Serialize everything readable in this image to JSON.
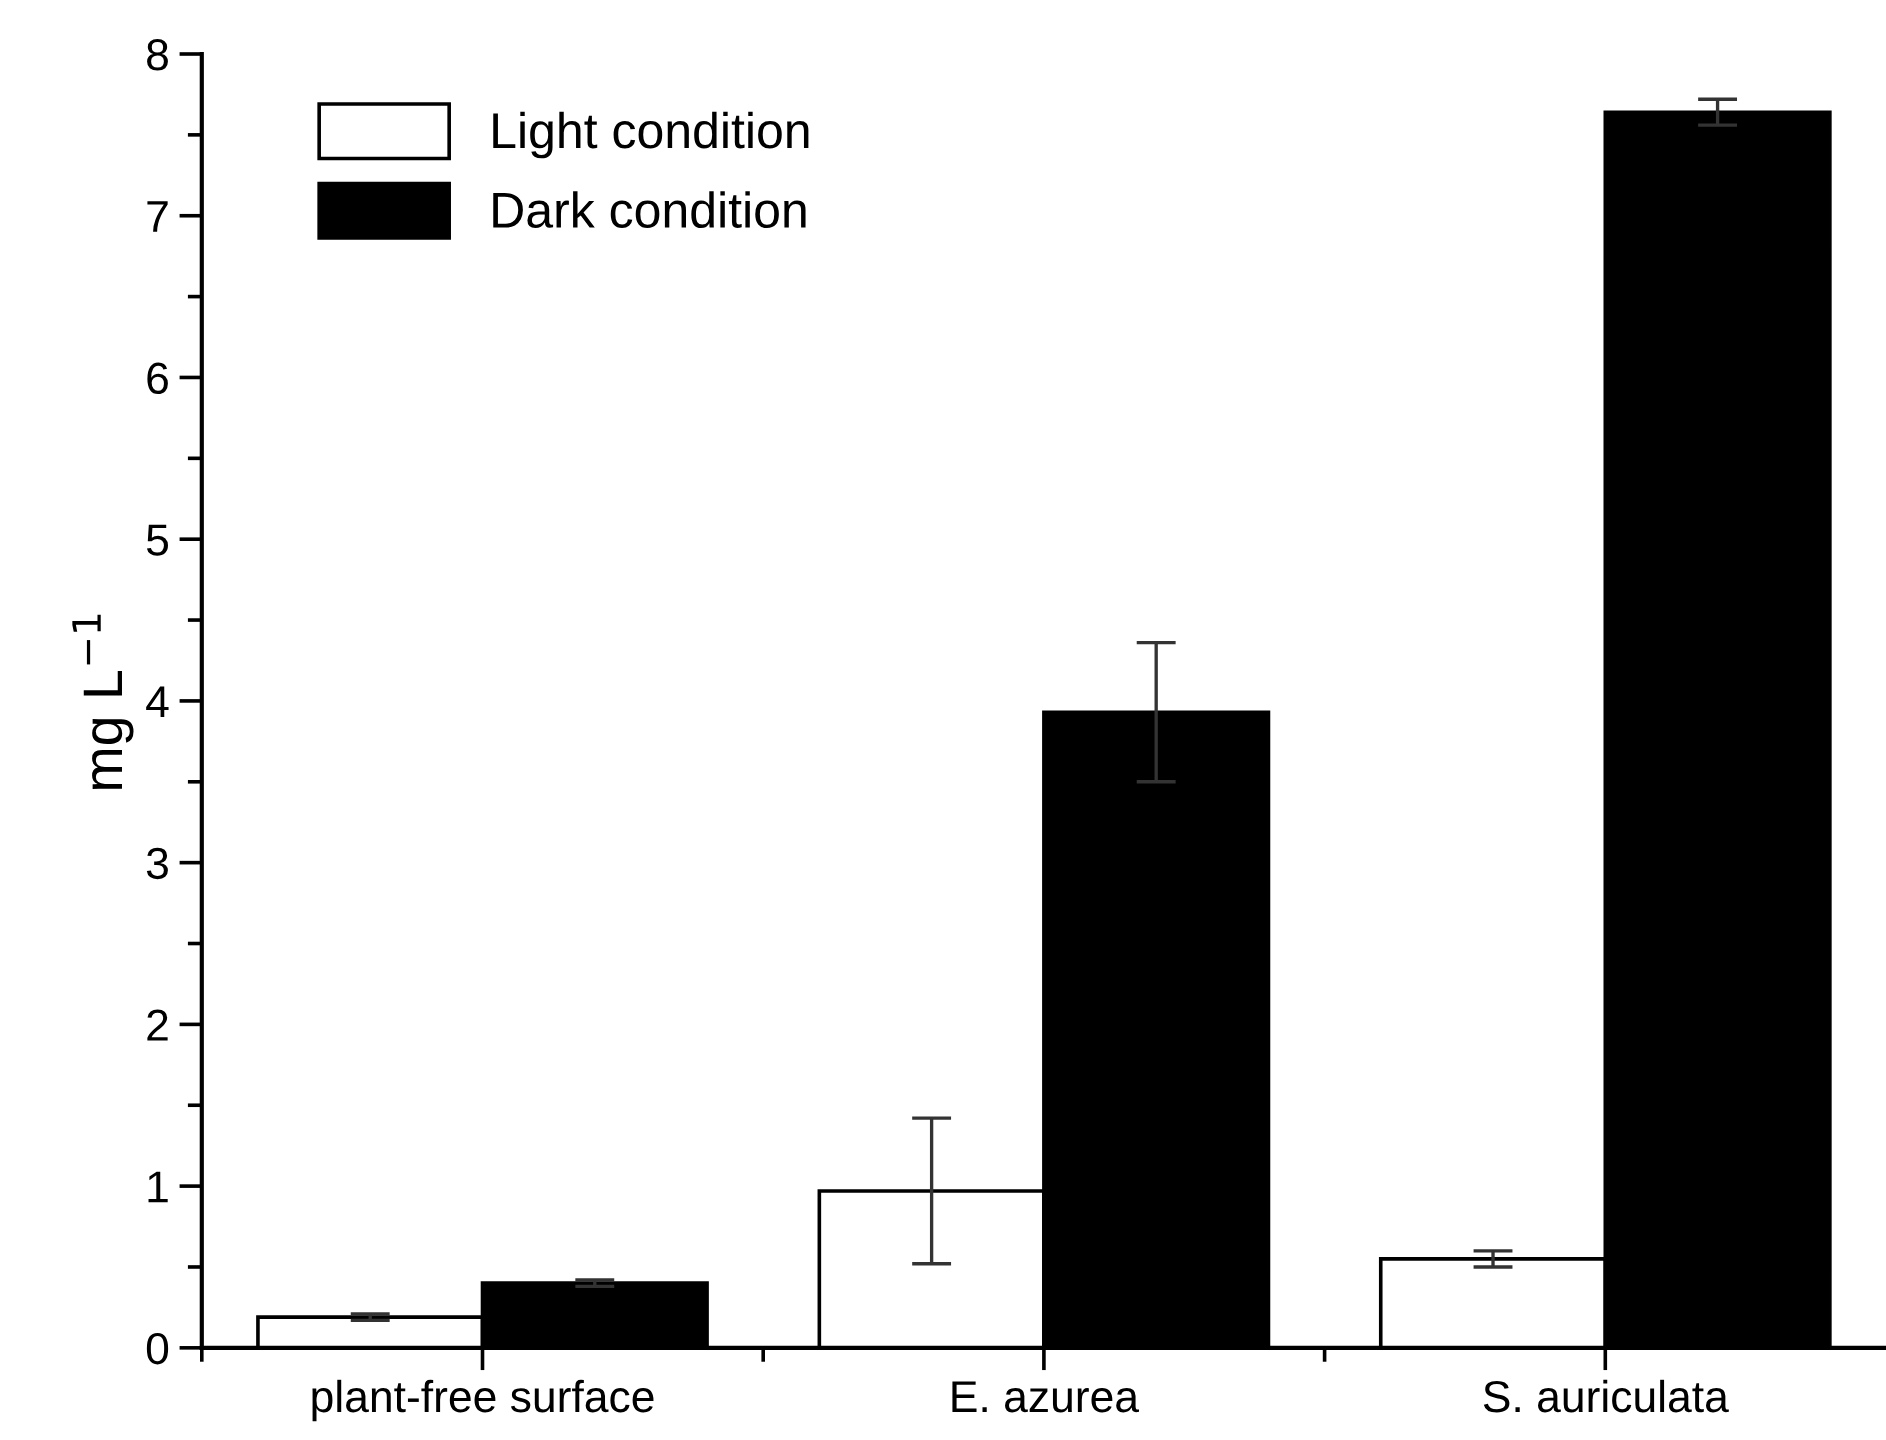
{
  "chart_data": {
    "type": "bar",
    "ylabel": "mg L$^{−1}$",
    "categories": [
      "plant-free surface",
      "E. azurea",
      "S. auriculata"
    ],
    "series": [
      {
        "name": "Light condition",
        "color": "#ffffff",
        "values": [
          0.19,
          0.97,
          0.55
        ],
        "errors": [
          0.02,
          0.45,
          0.05
        ]
      },
      {
        "name": "Dark condition",
        "color": "#000000",
        "values": [
          0.4,
          3.93,
          7.64
        ],
        "errors": [
          0.02,
          0.43,
          0.08
        ]
      }
    ],
    "ylim": [
      0,
      8
    ],
    "yticks": [
      0,
      {
        "value": 0.5,
        "label": null
      },
      1,
      {
        "value": 1.5,
        "label": null
      },
      2,
      {
        "value": 2.5,
        "label": null
      },
      3,
      {
        "value": 3.5,
        "label": null
      },
      4,
      {
        "value": 4.5,
        "label": null
      },
      5,
      {
        "value": 5.5,
        "label": null
      },
      6,
      {
        "value": 6.5,
        "label": null
      },
      7,
      {
        "value": 7.5,
        "label": null
      },
      8
    ],
    "grid": false,
    "legend": "top left"
  }
}
